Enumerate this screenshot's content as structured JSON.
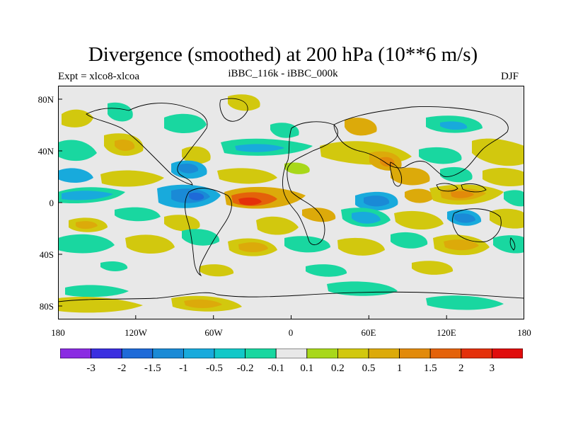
{
  "title": "Divergence (smoothed) at 200 hPa (10**6 m/s)",
  "subtitle_left": "Expt = xlco8-xlcoa",
  "subtitle_center": "iBBC_116k - iBBC_000k",
  "subtitle_right": "DJF",
  "lat_labels": [
    "80N",
    "40N",
    "0",
    "40S",
    "80S"
  ],
  "lon_labels": [
    "180",
    "120W",
    "60W",
    "0",
    "60E",
    "120E",
    "180"
  ],
  "colorbar": {
    "colors": [
      "#8a2be2",
      "#3a2ee0",
      "#1e6ad8",
      "#1a8ad6",
      "#18aadc",
      "#12c8c8",
      "#19d7a0",
      "#e8e8e8",
      "#a8d81a",
      "#d2c80e",
      "#dcaa0a",
      "#e28a0a",
      "#e4620a",
      "#e4300a",
      "#e00c0c"
    ],
    "labels": [
      "-3",
      "-2",
      "-1.5",
      "-1",
      "-0.5",
      "-0.2",
      "-0.1",
      "0.1",
      "0.2",
      "0.5",
      "1",
      "1.5",
      "2",
      "3"
    ]
  }
}
